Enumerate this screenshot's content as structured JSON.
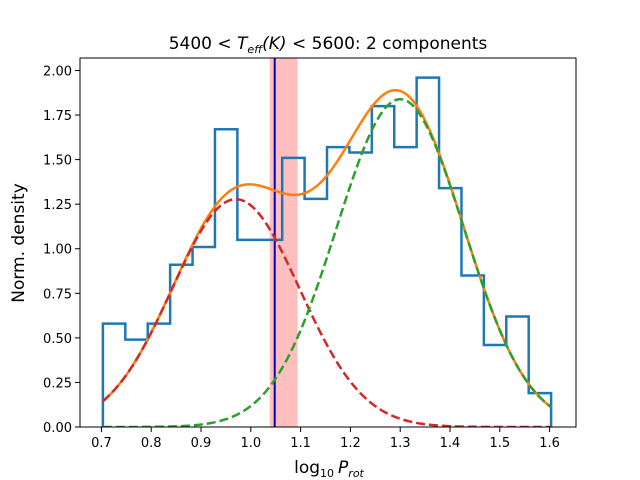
{
  "chart_data": {
    "type": "histogram",
    "title_text": {
      "prefix": "5400",
      "lt1": "<",
      "T": "T",
      "sub": "eff",
      "unit": "(K)",
      "lt2": "<",
      "suffix": "5600: 2 components"
    },
    "xlabel_text": {
      "base": "log",
      "sub": "10",
      "P": "P",
      "Psub": "rot"
    },
    "ylabel": "Norm. density",
    "xlim": [
      0.657,
      1.653
    ],
    "ylim": [
      0.0,
      2.07
    ],
    "xticks": [
      0.7,
      0.8,
      0.9,
      1.0,
      1.1,
      1.2,
      1.3,
      1.4,
      1.5,
      1.6
    ],
    "xtick_labels": [
      "0.7",
      "0.8",
      "0.9",
      "1.0",
      "1.1",
      "1.2",
      "1.3",
      "1.4",
      "1.5",
      "1.6"
    ],
    "yticks": [
      0.0,
      0.25,
      0.5,
      0.75,
      1.0,
      1.25,
      1.5,
      1.75,
      2.0
    ],
    "ytick_labels": [
      "0.00",
      "0.25",
      "0.50",
      "0.75",
      "1.00",
      "1.25",
      "1.50",
      "1.75",
      "2.00"
    ],
    "histogram": {
      "name": "data histogram",
      "color": "#1f77b4",
      "bin_edges": [
        0.703,
        0.748,
        0.793,
        0.838,
        0.883,
        0.928,
        0.973,
        1.018,
        1.063,
        1.108,
        1.153,
        1.198,
        1.243,
        1.288,
        1.333,
        1.378,
        1.423,
        1.468,
        1.513,
        1.558,
        1.603
      ],
      "values": [
        0.58,
        0.49,
        0.58,
        0.91,
        1.01,
        1.67,
        1.05,
        1.05,
        1.51,
        1.28,
        1.57,
        1.54,
        1.8,
        1.57,
        1.96,
        1.34,
        0.85,
        0.46,
        0.62,
        0.19
      ]
    },
    "components": [
      {
        "name": "component 1",
        "color": "#d62728",
        "style": "dashed",
        "weight": 0.41,
        "mu": 0.97,
        "sigma": 0.128
      },
      {
        "name": "component 2",
        "color": "#2ca02c",
        "style": "dashed",
        "weight": 0.59,
        "mu": 1.3,
        "sigma": 0.128
      }
    ],
    "total_model": {
      "name": "2-component sum",
      "color": "#ff7f0e",
      "style": "solid"
    },
    "vertical_line": {
      "x": 1.048,
      "color": "#0000cc"
    },
    "shaded_band": {
      "x_from": 1.038,
      "x_to": 1.094,
      "color": "#ffaaaa"
    }
  }
}
